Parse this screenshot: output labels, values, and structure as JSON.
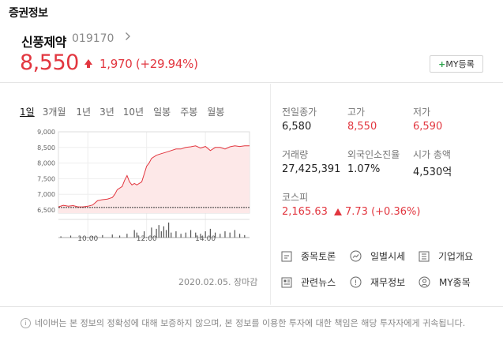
{
  "section": {
    "title": "증권정보"
  },
  "stock": {
    "name": "신풍제약",
    "code": "019170",
    "price": "8,550",
    "change": "1,970 (+29.94%)",
    "my_button_label": "MY등록"
  },
  "tabs": [
    "1일",
    "3개월",
    "1년",
    "3년",
    "10년",
    "일봉",
    "주봉",
    "월봉"
  ],
  "active_tab": "1일",
  "stats": [
    {
      "label": "전일종가",
      "value": "6,580",
      "red": false
    },
    {
      "label": "고가",
      "value": "8,550",
      "red": true
    },
    {
      "label": "저가",
      "value": "6,590",
      "red": true
    },
    {
      "label": "거래량",
      "value": "27,425,391",
      "red": false
    },
    {
      "label": "외국인소진율",
      "value": "1.07%",
      "red": false
    },
    {
      "label": "시가 총액",
      "value": "4,530억",
      "red": false
    }
  ],
  "index": {
    "label": "코스피",
    "value": "2,165.63",
    "change": "7.73 (+0.36%)"
  },
  "links": [
    {
      "label": "종목토론",
      "icon": "forum-icon"
    },
    {
      "label": "일별시세",
      "icon": "trend-icon"
    },
    {
      "label": "기업개요",
      "icon": "document-icon"
    },
    {
      "label": "관련뉴스",
      "icon": "news-icon"
    },
    {
      "label": "재무정보",
      "icon": "coin-icon"
    },
    {
      "label": "MY종목",
      "icon": "person-icon"
    }
  ],
  "date_status": "2020.02.05. 장마감",
  "disclaimer": "네이버는 본 정보의 정확성에 대해 보증하지 않으며, 본 정보를 이용한 투자에 대한 책임은 해당 투자자에게 귀속됩니다.",
  "colors": {
    "up": "#e2363f",
    "fill": "#fde8e8",
    "volume": "#555555"
  },
  "chart_data": {
    "type": "area",
    "ylim": [
      6400,
      9000
    ],
    "yticks": [
      "9,000",
      "8,500",
      "8,000",
      "7,500",
      "7,000",
      "6,500"
    ],
    "ytick_values": [
      9000,
      8500,
      8000,
      7500,
      7000,
      6500
    ],
    "xticks": [
      "10:00",
      "12:00",
      "14:00"
    ],
    "xtick_times": [
      60,
      180,
      300
    ],
    "reference_value": 6580,
    "price_series": {
      "t": [
        0,
        10,
        20,
        30,
        40,
        50,
        60,
        70,
        80,
        90,
        100,
        110,
        115,
        120,
        125,
        130,
        135,
        140,
        145,
        150,
        155,
        160,
        170,
        180,
        185,
        190,
        200,
        210,
        220,
        230,
        240,
        250,
        260,
        270,
        280,
        290,
        300,
        310,
        320,
        330,
        340,
        350,
        360,
        370,
        380,
        390
      ],
      "v": [
        6600,
        6650,
        6620,
        6640,
        6600,
        6600,
        6620,
        6660,
        6800,
        6830,
        6850,
        6900,
        7000,
        7150,
        7200,
        7250,
        7450,
        7600,
        7400,
        7300,
        7350,
        7300,
        7400,
        7900,
        8000,
        8150,
        8250,
        8300,
        8350,
        8400,
        8450,
        8450,
        8500,
        8520,
        8550,
        8480,
        8530,
        8400,
        8500,
        8500,
        8450,
        8520,
        8550,
        8530,
        8550,
        8550
      ]
    },
    "volume_series": {
      "t": [
        5,
        25,
        45,
        70,
        90,
        110,
        125,
        140,
        155,
        160,
        175,
        190,
        200,
        205,
        210,
        215,
        220,
        225,
        230,
        240,
        250,
        260,
        270,
        280,
        290,
        300,
        310,
        320,
        330,
        340,
        350,
        360,
        370,
        380
      ],
      "v": [
        5,
        8,
        4,
        6,
        10,
        12,
        8,
        15,
        30,
        20,
        25,
        40,
        35,
        50,
        25,
        45,
        30,
        60,
        20,
        25,
        15,
        20,
        30,
        20,
        15,
        25,
        35,
        20,
        15,
        25,
        20,
        30,
        15,
        10
      ]
    }
  }
}
